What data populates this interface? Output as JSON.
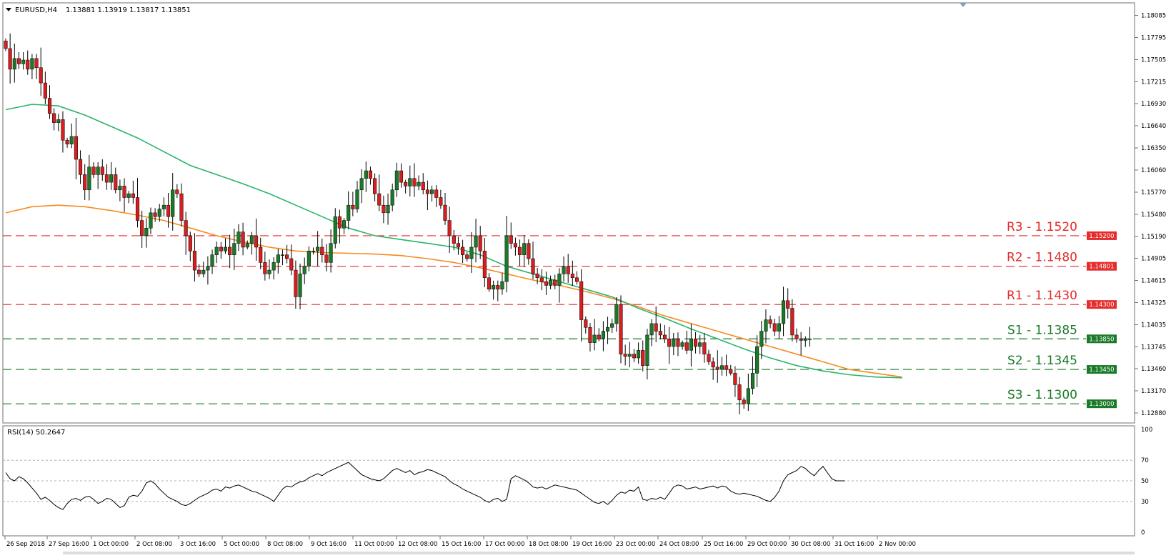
{
  "header": {
    "symbol": "EURUSD,H4",
    "ohlc": "1.13881 1.13919 1.13817 1.13851"
  },
  "chart_data": [
    {
      "type": "candlestick",
      "title": "EURUSD,H4 1.13881 1.13919 1.13817 1.13851",
      "ylim": [
        1.1288,
        1.1808
      ],
      "y_ticks": [
        "1.18085",
        "1.17795",
        "1.17505",
        "1.17215",
        "1.16930",
        "1.16640",
        "1.16350",
        "1.16060",
        "1.15770",
        "1.15480",
        "1.15190",
        "1.14905",
        "1.14615",
        "1.14325",
        "1.14035",
        "1.13745",
        "1.13460",
        "1.13170",
        "1.12880"
      ],
      "x_ticks": [
        "26 Sep 2018",
        "27 Sep 16:00",
        "1 Oct 00:00",
        "2 Oct 08:00",
        "3 Oct 16:00",
        "5 Oct 00:00",
        "8 Oct 08:00",
        "9 Oct 16:00",
        "11 Oct 00:00",
        "12 Oct 08:00",
        "15 Oct 16:00",
        "17 Oct 00:00",
        "18 Oct 08:00",
        "19 Oct 16:00",
        "23 Oct 00:00",
        "24 Oct 08:00",
        "25 Oct 16:00",
        "29 Oct 00:00",
        "30 Oct 08:00",
        "31 Oct 16:00",
        "2 Nov 00:00"
      ],
      "colors": {
        "up": "#1a7a28",
        "down": "#d81e1e",
        "ma_fast": "#2bb36a",
        "ma_slow": "#f58a1f",
        "resistance": "#e52b2b",
        "support": "#1a7a28"
      },
      "levels": [
        {
          "label": "R3 - 1.1520",
          "value": 1.152,
          "price_label": "1.15200",
          "kind": "resistance"
        },
        {
          "label": "R2 - 1.1480",
          "value": 1.148,
          "price_label": "1.14801",
          "kind": "resistance"
        },
        {
          "label": "R1 - 1.1430",
          "value": 1.143,
          "price_label": "1.14300",
          "kind": "resistance"
        },
        {
          "label": "S1 - 1.1385",
          "value": 1.1385,
          "price_label": "1.13850",
          "kind": "support"
        },
        {
          "label": "S2 - 1.1345",
          "value": 1.1345,
          "price_label": "1.13450",
          "kind": "support"
        },
        {
          "label": "S3 - 1.1300",
          "value": 1.13,
          "price_label": "1.13000",
          "kind": "support"
        }
      ],
      "closes": [
        1.1765,
        1.1738,
        1.1752,
        1.1745,
        1.175,
        1.1738,
        1.1752,
        1.174,
        1.172,
        1.17,
        1.168,
        1.1668,
        1.1672,
        1.1645,
        1.164,
        1.165,
        1.162,
        1.16,
        1.158,
        1.161,
        1.16,
        1.161,
        1.16,
        1.159,
        1.16,
        1.158,
        1.1585,
        1.157,
        1.1575,
        1.157,
        1.154,
        1.152,
        1.153,
        1.155,
        1.1545,
        1.1555,
        1.156,
        1.1545,
        1.158,
        1.1575,
        1.154,
        1.152,
        1.15,
        1.1475,
        1.147,
        1.1475,
        1.148,
        1.1495,
        1.1505,
        1.15,
        1.1505,
        1.1495,
        1.151,
        1.1525,
        1.1505,
        1.151,
        1.152,
        1.1505,
        1.1485,
        1.147,
        1.1475,
        1.1485,
        1.1495,
        1.1495,
        1.149,
        1.1475,
        1.144,
        1.147,
        1.148,
        1.15,
        1.15,
        1.1505,
        1.1495,
        1.1485,
        1.151,
        1.1545,
        1.153,
        1.154,
        1.156,
        1.1555,
        1.158,
        1.1595,
        1.1605,
        1.1595,
        1.1575,
        1.156,
        1.155,
        1.156,
        1.158,
        1.1605,
        1.159,
        1.1585,
        1.1595,
        1.1585,
        1.159,
        1.158,
        1.1575,
        1.158,
        1.157,
        1.156,
        1.154,
        1.152,
        1.151,
        1.1505,
        1.1495,
        1.149,
        1.1505,
        1.152,
        1.15,
        1.1465,
        1.145,
        1.1455,
        1.145,
        1.146,
        1.152,
        1.151,
        1.1505,
        1.1495,
        1.151,
        1.149,
        1.147,
        1.1465,
        1.146,
        1.1455,
        1.1462,
        1.1455,
        1.147,
        1.148,
        1.147,
        1.1465,
        1.146,
        1.141,
        1.14,
        1.138,
        1.139,
        1.1385,
        1.1395,
        1.14,
        1.1405,
        1.143,
        1.1365,
        1.1362,
        1.1365,
        1.136,
        1.137,
        1.135,
        1.139,
        1.1405,
        1.1395,
        1.139,
        1.1385,
        1.1375,
        1.1385,
        1.1375,
        1.138,
        1.137,
        1.1385,
        1.1375,
        1.138,
        1.1365,
        1.1355,
        1.1348,
        1.1345,
        1.135,
        1.1345,
        1.134,
        1.1325,
        1.1305,
        1.13,
        1.132,
        1.134,
        1.1375,
        1.1395,
        1.141,
        1.1405,
        1.1395,
        1.1405,
        1.1435,
        1.1425,
        1.139,
        1.1385,
        1.1383,
        1.1385,
        1.1385
      ],
      "ma_fast": [
        [
          0,
          1.1685
        ],
        [
          6,
          1.1692
        ],
        [
          12,
          1.169
        ],
        [
          18,
          1.1678
        ],
        [
          24,
          1.1663
        ],
        [
          30,
          1.1648
        ],
        [
          36,
          1.163
        ],
        [
          42,
          1.1612
        ],
        [
          48,
          1.16
        ],
        [
          54,
          1.1588
        ],
        [
          60,
          1.1575
        ],
        [
          66,
          1.156
        ],
        [
          72,
          1.1545
        ],
        [
          78,
          1.153
        ],
        [
          84,
          1.152
        ],
        [
          90,
          1.1515
        ],
        [
          96,
          1.151
        ],
        [
          102,
          1.1505
        ],
        [
          108,
          1.1495
        ],
        [
          114,
          1.148
        ],
        [
          120,
          1.147
        ],
        [
          126,
          1.146
        ],
        [
          132,
          1.145
        ],
        [
          138,
          1.144
        ],
        [
          144,
          1.1425
        ],
        [
          150,
          1.1412
        ],
        [
          156,
          1.1398
        ],
        [
          162,
          1.1385
        ],
        [
          168,
          1.1372
        ],
        [
          174,
          1.136
        ],
        [
          180,
          1.135
        ],
        [
          186,
          1.1343
        ],
        [
          192,
          1.1338
        ],
        [
          198,
          1.1335
        ],
        [
          204,
          1.1334
        ]
      ],
      "ma_slow": [
        [
          0,
          1.155
        ],
        [
          6,
          1.1558
        ],
        [
          12,
          1.156
        ],
        [
          18,
          1.1558
        ],
        [
          24,
          1.1553
        ],
        [
          30,
          1.1547
        ],
        [
          36,
          1.154
        ],
        [
          42,
          1.153
        ],
        [
          48,
          1.152
        ],
        [
          54,
          1.1512
        ],
        [
          60,
          1.1505
        ],
        [
          66,
          1.15
        ],
        [
          72,
          1.1498
        ],
        [
          78,
          1.1497
        ],
        [
          84,
          1.1496
        ],
        [
          90,
          1.1494
        ],
        [
          96,
          1.149
        ],
        [
          102,
          1.1485
        ],
        [
          108,
          1.1478
        ],
        [
          114,
          1.147
        ],
        [
          120,
          1.1462
        ],
        [
          126,
          1.1455
        ],
        [
          132,
          1.1447
        ],
        [
          138,
          1.1438
        ],
        [
          144,
          1.1427
        ],
        [
          150,
          1.1415
        ],
        [
          156,
          1.1405
        ],
        [
          162,
          1.1395
        ],
        [
          168,
          1.1385
        ],
        [
          174,
          1.1375
        ],
        [
          180,
          1.1365
        ],
        [
          186,
          1.1355
        ],
        [
          192,
          1.1345
        ],
        [
          198,
          1.134
        ],
        [
          204,
          1.1335
        ]
      ]
    },
    {
      "type": "line",
      "title": "RSI(14) 50.2647",
      "ylim": [
        0,
        100
      ],
      "y_ticks": [
        100,
        70,
        50,
        30,
        0
      ],
      "guides": [
        70,
        50,
        30
      ],
      "values": [
        58,
        52,
        50,
        54,
        52,
        48,
        43,
        38,
        32,
        34,
        31,
        27,
        24,
        22,
        28,
        32,
        33,
        31,
        34,
        35,
        32,
        28,
        30,
        33,
        32,
        28,
        24,
        26,
        34,
        36,
        35,
        40,
        48,
        50,
        47,
        42,
        38,
        34,
        32,
        30,
        27,
        26,
        28,
        31,
        34,
        36,
        38,
        41,
        42,
        40,
        44,
        43,
        45,
        46,
        44,
        42,
        40,
        39,
        37,
        35,
        33,
        30,
        36,
        42,
        45,
        44,
        47,
        49,
        50,
        53,
        55,
        57,
        55,
        58,
        60,
        62,
        64,
        66,
        68,
        64,
        60,
        56,
        54,
        52,
        51,
        50,
        52,
        56,
        60,
        62,
        60,
        58,
        60,
        56,
        58,
        59,
        61,
        60,
        58,
        56,
        54,
        50,
        47,
        45,
        42,
        40,
        38,
        36,
        34,
        31,
        29,
        32,
        33,
        30,
        32,
        52,
        55,
        53,
        51,
        48,
        44,
        43,
        44,
        42,
        44,
        46,
        45,
        44,
        43,
        42,
        41,
        38,
        35,
        32,
        29,
        28,
        30,
        27,
        31,
        36,
        39,
        38,
        41,
        40,
        44,
        32,
        31,
        33,
        32,
        34,
        32,
        38,
        44,
        46,
        45,
        42,
        43,
        44,
        42,
        43,
        44,
        45,
        43,
        45,
        44,
        40,
        38,
        37,
        38,
        37,
        36,
        35,
        33,
        31,
        30,
        34,
        40,
        50,
        56,
        58,
        60,
        64,
        62,
        58,
        55,
        60,
        64,
        58,
        52,
        50,
        50,
        50
      ]
    }
  ]
}
